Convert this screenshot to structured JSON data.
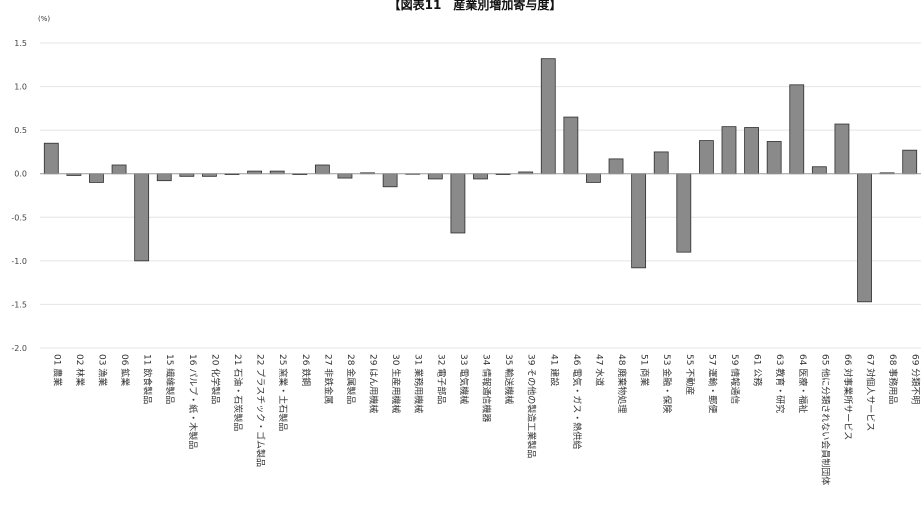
{
  "chart_data": {
    "type": "bar",
    "title": "【図表11　産業別増加寄与度】",
    "unit_label": "(%)",
    "ylim": [
      -2.0,
      1.5
    ],
    "yticks": [
      "1.5",
      "1.0",
      "0.5",
      "0.0",
      "-0.5",
      "-1.0",
      "-1.5",
      "-2.0"
    ],
    "ytick_values": [
      1.5,
      1.0,
      0.5,
      0.0,
      -0.5,
      -1.0,
      -1.5,
      -2.0
    ],
    "grid": true,
    "categories": [
      "01 農業",
      "02 林業",
      "03 漁業",
      "06 鉱業",
      "11 飲食製品",
      "15 繊維製品",
      "16 パルプ・紙・木製品",
      "20 化学製品",
      "21 石油・石炭製品",
      "22 プラスチック・ゴム製品",
      "25 窯業・土石製品",
      "26 鉄鋼",
      "27 非鉄金属",
      "28 金属製品",
      "29 はん用機械",
      "30 生産用機械",
      "31 業務用機械",
      "32 電子部品",
      "33 電気機械",
      "34 情報通信機器",
      "35 輸送機械",
      "39 その他の製造工業製品",
      "41 建設",
      "46 電気・ガス・熱供給",
      "47 水道",
      "48 廃棄物処理",
      "51 商業",
      "53 金融・保険",
      "55 不動産",
      "57 運輸・郵便",
      "59 情報通信",
      "61 公務",
      "63 教育・研究",
      "64 医療・福祉",
      "65 他に分類されない会員制団体",
      "66 対事業所サービス",
      "67 対個人サービス",
      "68 事務用品",
      "69 分類不明"
    ],
    "values": [
      0.35,
      -0.02,
      -0.1,
      0.1,
      -1.0,
      -0.08,
      -0.03,
      -0.03,
      -0.01,
      0.03,
      0.03,
      -0.01,
      0.1,
      -0.05,
      0.01,
      -0.15,
      0.0,
      -0.06,
      -0.68,
      -0.06,
      -0.01,
      0.02,
      1.32,
      0.65,
      -0.1,
      0.17,
      -1.08,
      0.25,
      -0.9,
      0.38,
      0.54,
      0.53,
      0.37,
      1.02,
      0.08,
      0.57,
      -1.47,
      0.01,
      0.27
    ]
  }
}
